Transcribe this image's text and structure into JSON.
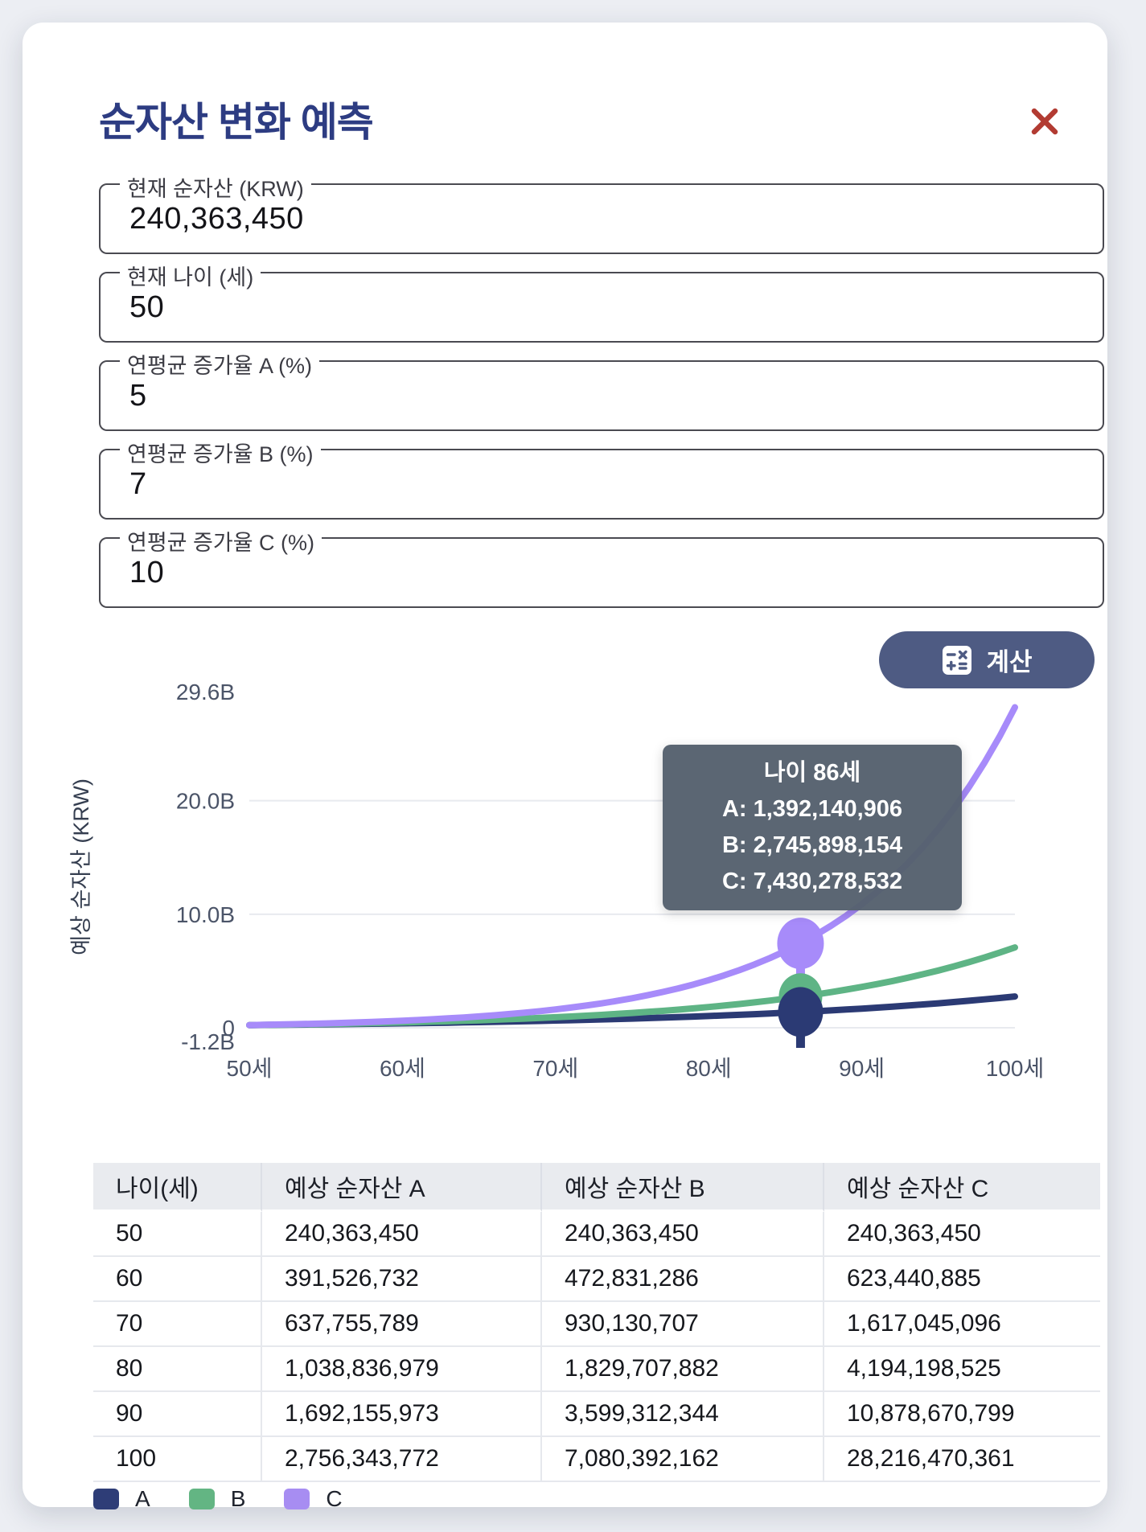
{
  "modal": {
    "title": "순자산 변화 예측"
  },
  "fields": [
    {
      "label": "현재 순자산 (KRW)",
      "value": "240,363,450"
    },
    {
      "label": "현재 나이 (세)",
      "value": "50"
    },
    {
      "label": "연평균 증가율 A (%)",
      "value": "5"
    },
    {
      "label": "연평균 증가율 B (%)",
      "value": "7"
    },
    {
      "label": "연평균 증가율 C (%)",
      "value": "10"
    }
  ],
  "calculate_button": {
    "label": "계산"
  },
  "chart_data": {
    "type": "line",
    "ylabel": "예상 순자산 (KRW)",
    "x_range": [
      50,
      100
    ],
    "x_ticks": [
      "50세",
      "60세",
      "70세",
      "80세",
      "90세",
      "100세"
    ],
    "ylim": [
      -1200000000,
      29600000000
    ],
    "y_ticks": [
      {
        "label": "29.6B",
        "value": 29600000000
      },
      {
        "label": "20.0B",
        "value": 20000000000
      },
      {
        "label": "10.0B",
        "value": 10000000000
      },
      {
        "label": "0",
        "value": 0
      },
      {
        "label": "-1.2B",
        "value": -1200000000
      }
    ],
    "gridlines_at": [
      20000000000,
      10000000000,
      0
    ],
    "start_age": 50,
    "initial_value": 240363450,
    "x_decades": [
      50,
      60,
      70,
      80,
      90,
      100
    ],
    "series": [
      {
        "name": "A",
        "color": "#2b3a74",
        "growth_rate_pct": 5,
        "values_by_decade": [
          240363450,
          391526732,
          637755789,
          1038836979,
          1692155973,
          2756343772
        ]
      },
      {
        "name": "B",
        "color": "#5eb485",
        "growth_rate_pct": 7,
        "values_by_decade": [
          240363450,
          472831286,
          930130707,
          1829707882,
          3599312344,
          7080392162
        ]
      },
      {
        "name": "C",
        "color": "#a78bfa",
        "growth_rate_pct": 10,
        "values_by_decade": [
          240363450,
          623440885,
          1617045096,
          4194198525,
          10878670799,
          28216470361
        ]
      }
    ],
    "tooltip": {
      "title": "나이 86세",
      "lines": [
        "A: 1,392,140,906",
        "B: 2,745,898,154",
        "C: 7,430,278,532"
      ],
      "marker_age": 86,
      "marker_values": [
        1392140906,
        2745898154,
        7430278532
      ]
    }
  },
  "table": {
    "headers": [
      "나이(세)",
      "예상 순자산 A",
      "예상 순자산 B",
      "예상 순자산 C"
    ],
    "rows": [
      [
        "50",
        "240,363,450",
        "240,363,450",
        "240,363,450"
      ],
      [
        "60",
        "391,526,732",
        "472,831,286",
        "623,440,885"
      ],
      [
        "70",
        "637,755,789",
        "930,130,707",
        "1,617,045,096"
      ],
      [
        "80",
        "1,038,836,979",
        "1,829,707,882",
        "4,194,198,525"
      ],
      [
        "90",
        "1,692,155,973",
        "3,599,312,344",
        "10,878,670,799"
      ],
      [
        "100",
        "2,756,343,772",
        "7,080,392,162",
        "28,216,470,361"
      ]
    ]
  },
  "legend": [
    {
      "label": "A",
      "color": "#2e3d77"
    },
    {
      "label": "B",
      "color": "#63b583"
    },
    {
      "label": "C",
      "color": "#a78df2"
    }
  ],
  "colors": {
    "title": "#2d3c82",
    "close_icon": "#b23b32",
    "button_bg": "#4e5b83",
    "tooltip_bg": "#566e6e",
    "grid": "#e8eaef",
    "tick_text": "#4b5468"
  }
}
